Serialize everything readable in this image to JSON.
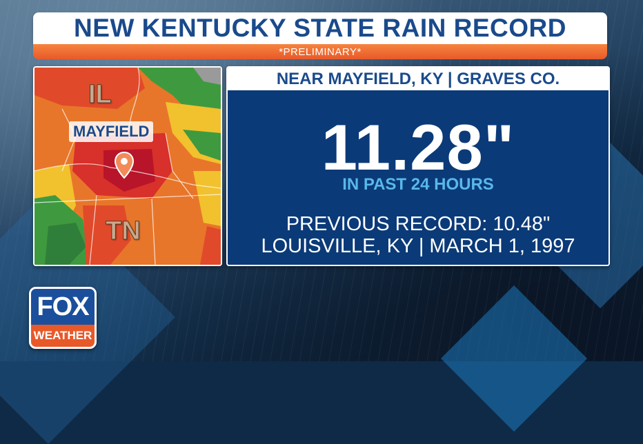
{
  "header": {
    "title": "NEW KENTUCKY STATE RAIN RECORD",
    "subtitle": "*PRELIMINARY*"
  },
  "map": {
    "state_label_north": "IL",
    "state_label_south": "TN",
    "city_label": "MAYFIELD",
    "pin_icon": "location-pin-icon"
  },
  "record": {
    "location": "NEAR MAYFIELD, KY | GRAVES CO.",
    "value": "11.28\"",
    "period": "IN PAST 24 HOURS",
    "previous_label": "PREVIOUS RECORD: 10.48\"",
    "previous_detail": "LOUISVILLE, KY | MARCH 1, 1997"
  },
  "logo": {
    "line1": "FOX",
    "line2": "WEATHER"
  },
  "colors": {
    "title_blue": "#1a4a8c",
    "accent_orange": "#e8592a",
    "panel_blue": "#0b3a78",
    "highlight_blue": "#59b8ea"
  }
}
